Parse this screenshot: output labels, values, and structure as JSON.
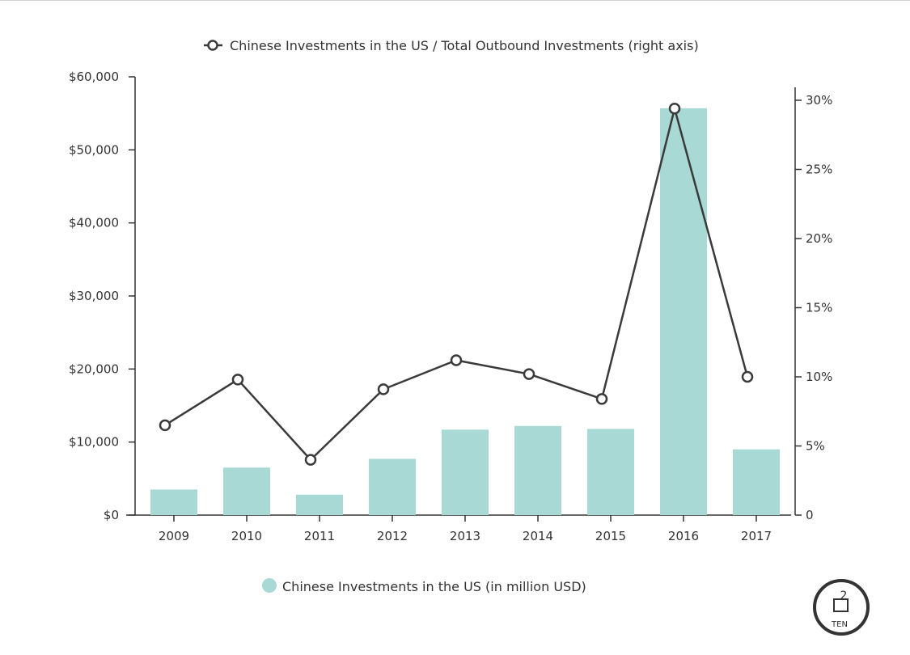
{
  "chart_data": {
    "type": "bar",
    "categories": [
      "2009",
      "2010",
      "2011",
      "2012",
      "2013",
      "2014",
      "2015",
      "2016",
      "2017"
    ],
    "series": [
      {
        "name": "Chinese Investments in the US (in million USD)",
        "type": "bar",
        "axis": "left",
        "values": [
          3500,
          6500,
          2800,
          7700,
          11700,
          12200,
          11800,
          55700,
          9000
        ]
      },
      {
        "name": "Chinese Investments in the US / Total Outbound Investments (right axis)",
        "type": "line",
        "axis": "right",
        "values": [
          6.5,
          9.8,
          4.0,
          9.1,
          11.2,
          10.2,
          8.4,
          29.4,
          10.0
        ]
      }
    ],
    "y_left": {
      "ylim": [
        0,
        60000
      ],
      "ticks": [
        0,
        10000,
        20000,
        30000,
        40000,
        50000,
        60000
      ],
      "tick_labels": [
        "$0",
        "$10,000",
        "$20,000",
        "$30,000",
        "$40,000",
        "$50,000",
        "$60,000"
      ]
    },
    "y_right": {
      "ylim": [
        0,
        30
      ],
      "ticks": [
        0,
        5,
        10,
        15,
        20,
        25,
        30
      ],
      "tick_labels": [
        "0",
        "5%",
        "10%",
        "15%",
        "20%",
        "25%",
        "30%"
      ]
    },
    "grid": false,
    "legend": {
      "line_label": "Chinese Investments in the US / Total Outbound Investments (right axis)",
      "line_position": "top-center",
      "bar_label": "Chinese Investments in the US (in million USD)",
      "bar_position": "bottom-center"
    },
    "colors": {
      "bar": "#a8d9d5",
      "line": "#3a3a3a",
      "axis": "#333333",
      "text": "#333333"
    }
  },
  "logo": {
    "text_top": "2",
    "text_bottom": "TEN",
    "icon": "2ten-logo-icon"
  }
}
